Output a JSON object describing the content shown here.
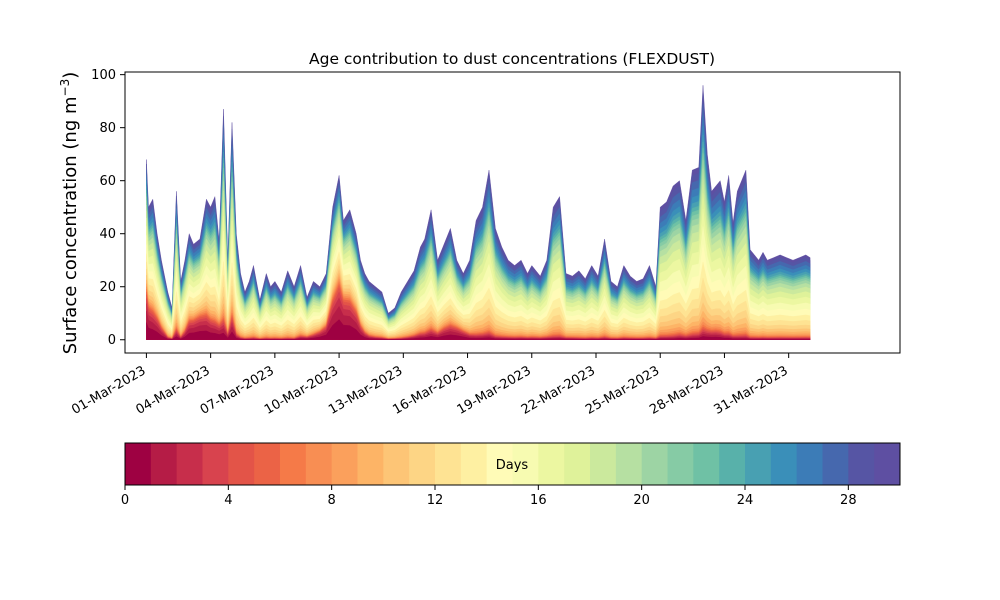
{
  "chart_data": {
    "type": "area",
    "stacked": true,
    "title": "Age contribution to dust concentrations (FLEXDUST)",
    "ylabel": "Surface concentration (ng m",
    "ylabel_sup": "−3",
    "ylabel_close": ")",
    "ylim": [
      -5,
      101
    ],
    "yticks": [
      0,
      20,
      40,
      60,
      80,
      100
    ],
    "x_range_days": [
      -1,
      35.2
    ],
    "xticks": [
      {
        "day": 0,
        "label": "01-Mar-2023"
      },
      {
        "day": 3,
        "label": "04-Mar-2023"
      },
      {
        "day": 6,
        "label": "07-Mar-2023"
      },
      {
        "day": 9,
        "label": "10-Mar-2023"
      },
      {
        "day": 12,
        "label": "13-Mar-2023"
      },
      {
        "day": 15,
        "label": "16-Mar-2023"
      },
      {
        "day": 18,
        "label": "19-Mar-2023"
      },
      {
        "day": 21,
        "label": "22-Mar-2023"
      },
      {
        "day": 24,
        "label": "25-Mar-2023"
      },
      {
        "day": 27,
        "label": "28-Mar-2023"
      },
      {
        "day": 30,
        "label": "31-Mar-2023"
      }
    ],
    "age_classes_days": 30,
    "total_envelope": {
      "day": [
        0,
        0.1,
        0.3,
        0.5,
        0.7,
        1.0,
        1.2,
        1.4,
        1.6,
        1.8,
        2.0,
        2.2,
        2.5,
        2.8,
        3.0,
        3.2,
        3.4,
        3.6,
        3.8,
        4.0,
        4.2,
        4.4,
        4.6,
        4.8,
        5.0,
        5.3,
        5.6,
        5.8,
        6.0,
        6.3,
        6.6,
        6.9,
        7.2,
        7.5,
        7.8,
        8.1,
        8.4,
        8.7,
        9.0,
        9.2,
        9.5,
        9.8,
        10.0,
        10.2,
        10.4,
        10.7,
        11.0,
        11.3,
        11.6,
        11.9,
        12.2,
        12.5,
        12.8,
        13.0,
        13.3,
        13.6,
        13.9,
        14.2,
        14.5,
        14.8,
        15.1,
        15.4,
        15.7,
        16.0,
        16.3,
        16.6,
        16.9,
        17.2,
        17.5,
        17.8,
        18.0,
        18.2,
        18.4,
        18.7,
        19.0,
        19.3,
        19.6,
        19.9,
        20.2,
        20.5,
        20.8,
        21.1,
        21.4,
        21.7,
        22.0,
        22.3,
        22.6,
        22.9,
        23.2,
        23.5,
        23.8,
        24.0,
        24.3,
        24.6,
        24.9,
        25.2,
        25.5,
        25.8,
        26.0,
        26.2,
        26.4,
        26.6,
        26.8,
        27.0,
        27.2,
        27.4,
        27.6,
        27.8,
        28.0,
        28.2,
        28.4,
        28.6,
        28.8,
        29.0,
        29.3,
        29.6,
        29.9,
        30.2,
        30.5,
        30.8,
        31.0
      ],
      "total": [
        68,
        50,
        53,
        40,
        30,
        18,
        12,
        56,
        22,
        30,
        40,
        36,
        38,
        53,
        50,
        54,
        37,
        87,
        30,
        82,
        40,
        25,
        18,
        22,
        28,
        15,
        25,
        20,
        22,
        18,
        26,
        20,
        28,
        16,
        22,
        20,
        25,
        50,
        62,
        45,
        49,
        40,
        30,
        25,
        22,
        20,
        18,
        10,
        12,
        18,
        22,
        26,
        35,
        38,
        49,
        30,
        36,
        42,
        30,
        25,
        30,
        45,
        50,
        64,
        42,
        35,
        30,
        28,
        30,
        25,
        28,
        26,
        24,
        30,
        50,
        54,
        25,
        24,
        26,
        23,
        28,
        24,
        38,
        22,
        20,
        28,
        24,
        22,
        23,
        28,
        20,
        50,
        52,
        58,
        60,
        45,
        64,
        65,
        96,
        70,
        56,
        58,
        60,
        52,
        62,
        44,
        56,
        60,
        64,
        34,
        32,
        30,
        33,
        30,
        31,
        32,
        31,
        30,
        31,
        32,
        31
      ],
      "young_fraction": [
        0.55,
        0.52,
        0.45,
        0.45,
        0.35,
        0.1,
        0.05,
        0.15,
        0.08,
        0.25,
        0.4,
        0.45,
        0.5,
        0.4,
        0.35,
        0.3,
        0.35,
        0.2,
        0.15,
        0.25,
        0.1,
        0.05,
        0.03,
        0.03,
        0.03,
        0.02,
        0.02,
        0.02,
        0.02,
        0.02,
        0.02,
        0.02,
        0.1,
        0.15,
        0.2,
        0.35,
        0.45,
        0.6,
        0.65,
        0.65,
        0.6,
        0.55,
        0.4,
        0.25,
        0.15,
        0.1,
        0.08,
        0.05,
        0.05,
        0.05,
        0.08,
        0.12,
        0.15,
        0.15,
        0.18,
        0.2,
        0.28,
        0.3,
        0.35,
        0.3,
        0.15,
        0.08,
        0.08,
        0.08,
        0.05,
        0.05,
        0.05,
        0.05,
        0.05,
        0.05,
        0.05,
        0.05,
        0.05,
        0.05,
        0.03,
        0.03,
        0.05,
        0.05,
        0.03,
        0.03,
        0.03,
        0.03,
        0.03,
        0.03,
        0.03,
        0.03,
        0.03,
        0.03,
        0.03,
        0.03,
        0.03,
        0.03,
        0.03,
        0.03,
        0.05,
        0.05,
        0.05,
        0.06,
        0.08,
        0.1,
        0.12,
        0.12,
        0.1,
        0.08,
        0.06,
        0.05,
        0.03,
        0.03,
        0.03,
        0.03,
        0.03,
        0.03,
        0.03,
        0.03,
        0.03,
        0.03,
        0.03,
        0.03,
        0.03,
        0.03,
        0.03,
        0.03
      ]
    },
    "colorbar": {
      "label": "Days",
      "range": [
        0,
        30
      ],
      "ticks": [
        0,
        4,
        8,
        12,
        16,
        20,
        24,
        28
      ],
      "tick_labels": [
        "0",
        "4",
        "8",
        "12",
        "16",
        "20",
        "24",
        "28"
      ],
      "colors": [
        "#9e0142",
        "#b51c46",
        "#c72e4b",
        "#d8434e",
        "#e35448",
        "#eb6346",
        "#f57a48",
        "#f88e53",
        "#fba05c",
        "#fdb466",
        "#fdc576",
        "#fdd585",
        "#fee393",
        "#fef0a2",
        "#fffbb7",
        "#f7fbb1",
        "#ecf7a1",
        "#dff29a",
        "#cbe99d",
        "#b6e0a2",
        "#9dd4a4",
        "#86cba5",
        "#6fc1a5",
        "#58b1aa",
        "#48a0b2",
        "#3a8fb9",
        "#3c7cb7",
        "#4668ae",
        "#5655a4",
        "#5e4fa2"
      ]
    }
  }
}
